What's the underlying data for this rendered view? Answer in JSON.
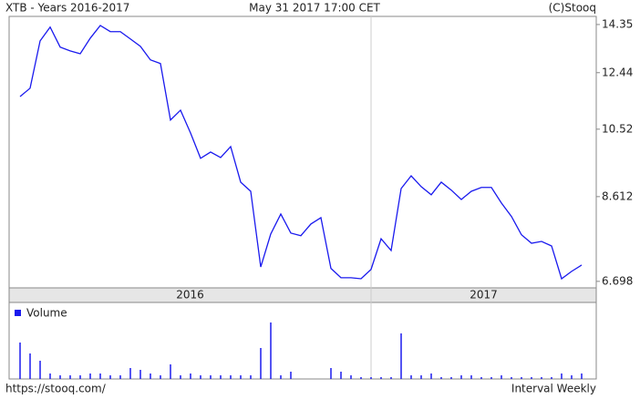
{
  "header": {
    "title": "XTB - Years 2016-2017",
    "date": "May 31 2017 17:00 CET",
    "source": "(C)Stooq"
  },
  "footer": {
    "url": "https://stooq.com/",
    "interval": "Interval Weekly"
  },
  "chart_data": [
    {
      "type": "line",
      "color": "#1a1aee",
      "log": true,
      "categories": [
        "2016",
        null,
        null,
        null,
        null,
        null,
        null,
        null,
        null,
        null,
        null,
        null,
        null,
        null,
        null,
        null,
        null,
        null,
        null,
        null,
        null,
        null,
        null,
        null,
        null,
        null,
        null,
        null,
        null,
        null,
        null,
        null,
        null,
        null,
        null,
        "2017",
        null,
        null,
        null,
        null,
        null,
        null,
        null,
        null,
        null,
        null,
        null,
        null,
        null,
        null,
        null,
        null,
        null,
        null,
        null,
        null,
        null
      ],
      "values": [
        11.59,
        11.88,
        13.67,
        14.24,
        13.42,
        13.27,
        13.16,
        13.78,
        14.31,
        14.05,
        14.05,
        13.75,
        13.45,
        12.92,
        12.78,
        10.81,
        11.13,
        10.4,
        9.65,
        9.83,
        9.67,
        9.99,
        8.99,
        8.75,
        6.99,
        7.71,
        8.18,
        7.73,
        7.67,
        7.94,
        8.09,
        6.96,
        6.77,
        6.77,
        6.75,
        6.94,
        7.6,
        7.34,
        8.82,
        9.16,
        8.87,
        8.66,
        8.99,
        8.78,
        8.54,
        8.75,
        8.85,
        8.85,
        8.45,
        8.12,
        7.69,
        7.5,
        7.54,
        7.44,
        6.75,
        6.9,
        7.03
      ],
      "ylim": [
        6.57,
        14.7
      ],
      "yticks": [
        14.35,
        12.44,
        10.52,
        8.612,
        6.698
      ]
    },
    {
      "type": "bar",
      "ylim": [
        0,
        81
      ],
      "series": [
        {
          "name": "Volume",
          "color": "#1a1aee",
          "values": [
            40,
            28,
            20,
            6,
            4,
            4,
            4,
            6,
            6,
            4,
            4,
            12,
            10,
            6,
            4,
            16,
            4,
            6,
            4,
            4,
            4,
            4,
            4,
            4,
            34,
            62,
            4,
            8,
            0,
            0,
            0,
            12,
            8,
            4,
            2,
            2,
            2,
            2,
            50,
            4,
            4,
            6,
            2,
            2,
            4,
            4,
            2,
            2,
            4,
            2,
            2,
            2,
            2,
            2,
            6,
            4,
            6
          ]
        }
      ]
    }
  ]
}
